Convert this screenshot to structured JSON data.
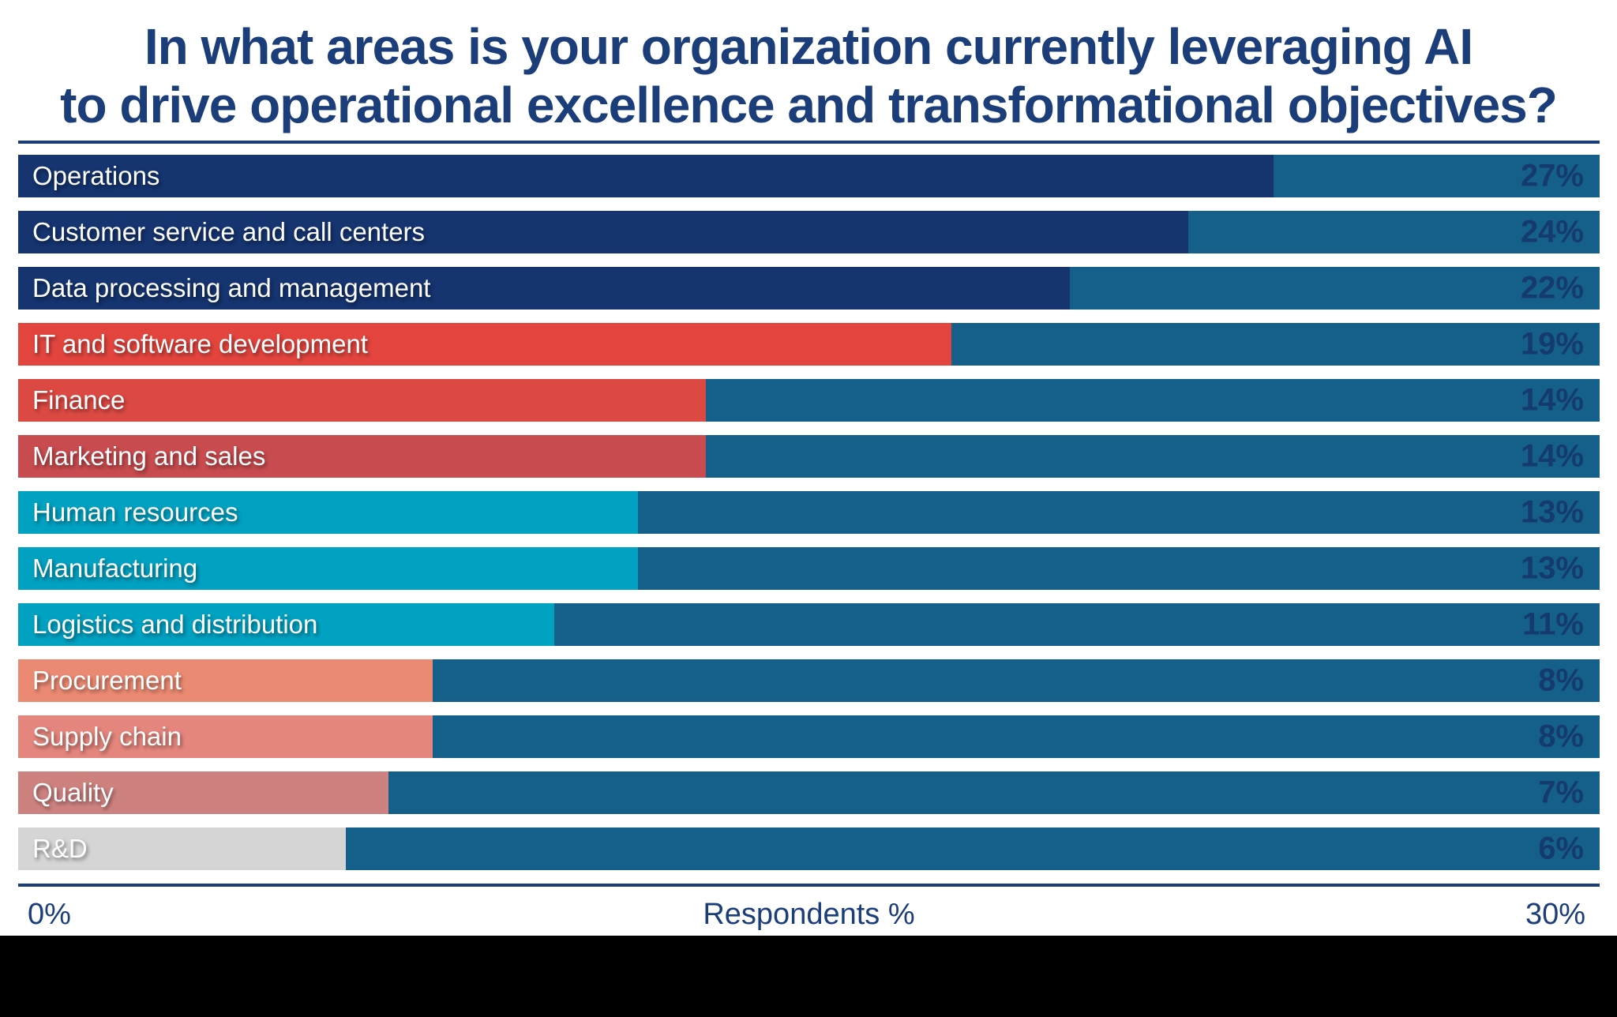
{
  "page": {
    "background": "#ffffff",
    "footer_band_color": "#000000",
    "divider_color": "#1b3d7a"
  },
  "header": {
    "title_line1": "In what areas is your organization currently leveraging AI",
    "title_line2": "to drive operational excellence and transformational objectives?",
    "title_color": "#1b3d7a"
  },
  "axis": {
    "min_label": "0%",
    "center_label": "Respondents %",
    "max_label": "30%",
    "label_color": "#1b3d7a"
  },
  "chart_data": {
    "type": "bar",
    "orientation": "horizontal",
    "title": "In what areas is your organization currently leveraging AI to drive operational excellence and transformational objectives?",
    "xlabel": "Respondents %",
    "xlim": [
      0,
      30
    ],
    "grid": false,
    "legend": false,
    "unit": "%",
    "categories": [
      "Operations",
      "Customer service and call centers",
      "Data processing and management",
      "IT and software development",
      "Finance",
      "Marketing and sales",
      "Human resources",
      "Manufacturing",
      "Logistics and distribution",
      "Procurement",
      "Supply chain",
      "Quality",
      "R&D"
    ],
    "values": [
      27,
      24,
      22,
      19,
      14,
      14,
      13,
      13,
      11,
      8,
      8,
      7,
      6
    ],
    "value_labels": [
      "27%",
      "24%",
      "22%",
      "19%",
      "14%",
      "14%",
      "13%",
      "13%",
      "11%",
      "8%",
      "8%",
      "7%",
      "6%"
    ],
    "bar_colors": [
      "#153470",
      "#153470",
      "#153470",
      "#e3453e",
      "#dc4943",
      "#c84b4f",
      "#00a1c1",
      "#00a1c1",
      "#00a1c1",
      "#eb8a72",
      "#e4867d",
      "#ce8280",
      "#d5d5d6"
    ],
    "track_color": "#14608a",
    "value_label_color": "#143a6e",
    "bar_label_color": "#ffffff",
    "drawn_width_pct": [
      79.4,
      74.0,
      66.5,
      59.0,
      43.5,
      43.5,
      39.2,
      39.2,
      33.9,
      26.2,
      26.2,
      23.4,
      20.7
    ]
  }
}
